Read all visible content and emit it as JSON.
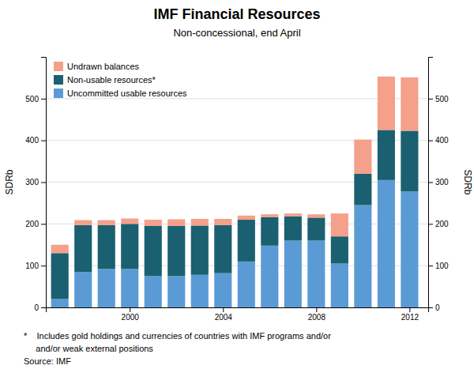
{
  "chart_data": {
    "type": "bar",
    "stacked": true,
    "title": "IMF Financial Resources",
    "subtitle": "Non-concessional, end April",
    "ylabel": "SDRb",
    "y2label": "SDRb",
    "annotations": [
      "*    Includes gold holdings and currencies of countries with IMF programs and/or",
      "     and/or weak external positions",
      "Source: IMF"
    ],
    "x": [
      1997,
      1998,
      1999,
      2000,
      2001,
      2002,
      2003,
      2004,
      2005,
      2006,
      2007,
      2008,
      2009,
      2010,
      2011,
      2012
    ],
    "xlim": [
      1996.4,
      2012.8
    ],
    "xticks": [
      2000,
      2004,
      2008,
      2012
    ],
    "ylim": [
      0,
      600
    ],
    "yticks": [
      0,
      100,
      200,
      300,
      400,
      500
    ],
    "y2lim": [
      0,
      600
    ],
    "y2ticks": [
      0,
      100,
      200,
      300,
      400,
      500
    ],
    "grid": true,
    "legend": "upper left",
    "series": [
      {
        "name": "Uncommitted usable resources",
        "color": "#5B9BD5",
        "values": [
          20,
          85,
          92,
          92,
          75,
          75,
          78,
          82,
          110,
          148,
          160,
          160,
          105,
          245,
          305,
          278
        ]
      },
      {
        "name": "Non-usable resources*",
        "color": "#1A6070",
        "values": [
          110,
          112,
          105,
          108,
          120,
          120,
          118,
          115,
          100,
          68,
          58,
          55,
          65,
          75,
          120,
          145
        ]
      },
      {
        "name": "Undrawn balances",
        "color": "#F4A08A",
        "values": [
          20,
          12,
          12,
          13,
          15,
          16,
          16,
          15,
          10,
          7,
          7,
          8,
          55,
          82,
          128,
          128
        ]
      }
    ]
  }
}
